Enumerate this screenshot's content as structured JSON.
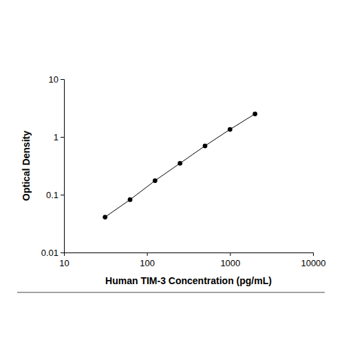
{
  "chart_data": {
    "type": "line",
    "x_label": "Human TIM-3 Concentration (pg/mL)",
    "y_label": "Optical Density",
    "x": [
      31.25,
      62.5,
      125,
      250,
      500,
      1000,
      2000
    ],
    "values": [
      0.041,
      0.082,
      0.175,
      0.35,
      0.7,
      1.35,
      2.5
    ],
    "color": "#000000",
    "marker": "circle",
    "line_style": "solid",
    "log": true,
    "grid": false,
    "xlim": [
      10,
      10000
    ],
    "xticks": [
      10,
      100,
      1000,
      10000
    ],
    "ylim": [
      0.01,
      10
    ],
    "yticks": [
      0.01,
      0.1,
      1,
      10
    ]
  }
}
